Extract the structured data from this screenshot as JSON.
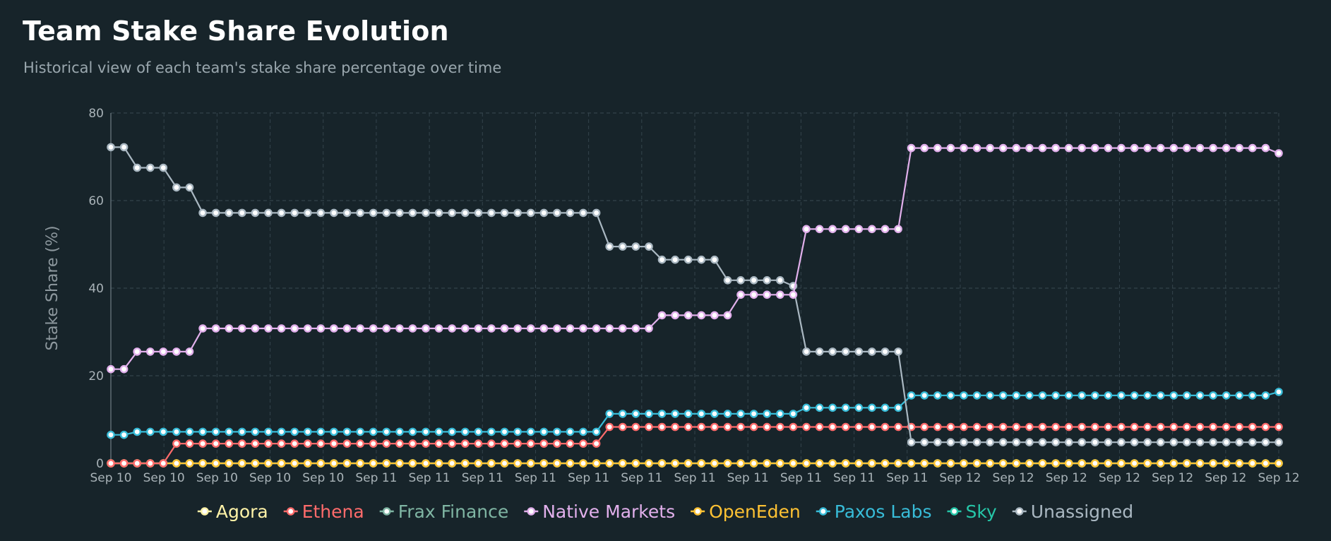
{
  "header": {
    "title": "Team Stake Share Evolution",
    "subtitle": "Historical view of each team's stake share percentage over time"
  },
  "chart_data": {
    "type": "line",
    "title": "Team Stake Share Evolution",
    "ylabel": "Stake Share (%)",
    "ylim": [
      0,
      80
    ],
    "yticks": [
      0,
      20,
      40,
      60,
      80
    ],
    "x_tick_labels": [
      "Sep 10",
      "Sep 10",
      "Sep 10",
      "Sep 10",
      "Sep 10",
      "Sep 11",
      "Sep 11",
      "Sep 11",
      "Sep 11",
      "Sep 11",
      "Sep 11",
      "Sep 11",
      "Sep 11",
      "Sep 11",
      "Sep 11",
      "Sep 11",
      "Sep 12",
      "Sep 12",
      "Sep 12",
      "Sep 12",
      "Sep 12",
      "Sep 12",
      "Sep 12"
    ],
    "grid": true,
    "legend_position": "bottom",
    "n_points": 90,
    "series": [
      {
        "name": "Agora",
        "color": "#fff3a8",
        "segments": [
          [
            0,
            89,
            0
          ]
        ]
      },
      {
        "name": "Ethena",
        "color": "#ff6b6b",
        "segments": [
          [
            0,
            4,
            0
          ],
          [
            5,
            37,
            4.5
          ],
          [
            38,
            89,
            8.3
          ]
        ]
      },
      {
        "name": "Frax Finance",
        "color": "#7fb5a3",
        "segments": [
          [
            0,
            89,
            0
          ]
        ]
      },
      {
        "name": "Native Markets",
        "color": "#e2b0ec",
        "segments": [
          [
            0,
            1,
            21.5
          ],
          [
            2,
            6,
            25.5
          ],
          [
            7,
            41,
            30.8
          ],
          [
            42,
            47,
            33.8
          ],
          [
            48,
            52,
            38.5
          ],
          [
            53,
            60,
            53.5
          ],
          [
            61,
            89,
            72
          ]
        ]
      },
      {
        "name": "OpenEden",
        "color": "#ffc233",
        "segments": [
          [
            0,
            89,
            0
          ]
        ]
      },
      {
        "name": "Paxos Labs",
        "color": "#38bcd8",
        "segments": [
          [
            0,
            1,
            6.5
          ],
          [
            2,
            37,
            7.2
          ],
          [
            38,
            52,
            11.3
          ],
          [
            53,
            60,
            12.7
          ],
          [
            61,
            89,
            15.5
          ]
        ]
      },
      {
        "name": "Sky",
        "color": "#26c6a8",
        "segments": [
          [
            0,
            89,
            0
          ]
        ]
      },
      {
        "name": "Unassigned",
        "color": "#aab8c2",
        "segments": [
          [
            0,
            1,
            72.2
          ],
          [
            2,
            4,
            67.5
          ],
          [
            5,
            6,
            63
          ],
          [
            7,
            37,
            57.2
          ],
          [
            38,
            41,
            49.5
          ],
          [
            42,
            46,
            46.5
          ],
          [
            47,
            52,
            41.8
          ],
          [
            53,
            60,
            25.5
          ],
          [
            61,
            89,
            4.8
          ]
        ]
      }
    ],
    "overrides": {
      "Native Markets": {
        "52": 38.5,
        "89": 70.8
      },
      "Unassigned": {
        "52": 40.5,
        "6": 63
      },
      "Paxos Labs": {
        "89": 16.3
      }
    }
  }
}
